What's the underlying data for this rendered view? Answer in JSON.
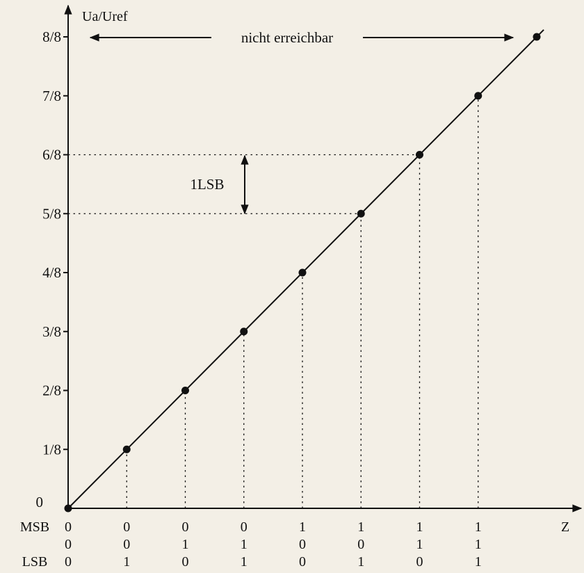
{
  "chart_data": {
    "type": "line",
    "title": "",
    "xlabel": "Z",
    "ylabel": "Ua/Uref",
    "ylim": [
      0,
      1
    ],
    "xlim": [
      0,
      8
    ],
    "y_tick_labels": [
      "0",
      "1/8",
      "2/8",
      "3/8",
      "4/8",
      "5/8",
      "6/8",
      "7/8",
      "8/8"
    ],
    "x": [
      0,
      1,
      2,
      3,
      4,
      5,
      6,
      7,
      8
    ],
    "y": [
      0,
      0.125,
      0.25,
      0.375,
      0.5,
      0.625,
      0.75,
      0.875,
      1.0
    ],
    "bit_rows": {
      "labels": [
        "MSB",
        "",
        "LSB"
      ],
      "codes": [
        [
          "0",
          "0",
          "0"
        ],
        [
          "0",
          "0",
          "1"
        ],
        [
          "0",
          "1",
          "0"
        ],
        [
          "0",
          "1",
          "1"
        ],
        [
          "1",
          "0",
          "0"
        ],
        [
          "1",
          "0",
          "1"
        ],
        [
          "1",
          "1",
          "0"
        ],
        [
          "1",
          "1",
          "1"
        ]
      ]
    },
    "annotations": {
      "unreachable": "nicht erreichbar",
      "lsb_step": "1LSB"
    },
    "colors": {
      "ink": "#111111",
      "background": "#f3efe6"
    }
  }
}
